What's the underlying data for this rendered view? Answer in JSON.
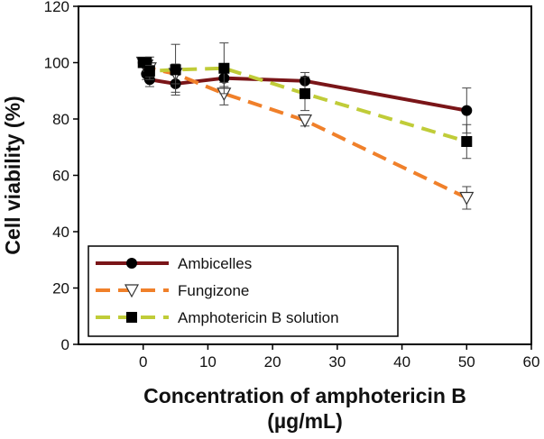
{
  "chart_data": {
    "type": "line",
    "title": "",
    "xlabel_lines": [
      "Concentration of amphotericin B",
      "(µg/mL)"
    ],
    "ylabel": "Cell viability (%)",
    "xlim": [
      -10,
      60
    ],
    "ylim": [
      0,
      120
    ],
    "xticks": [
      0,
      10,
      20,
      30,
      40,
      50,
      60
    ],
    "yticks": [
      0,
      20,
      40,
      60,
      80,
      100,
      120
    ],
    "grid": false,
    "legend_position": "bottom-left",
    "series": [
      {
        "name": "Ambicelles",
        "color": "#7a1518",
        "line_style": "solid",
        "marker": "filled-circle",
        "x": [
          0,
          0.5,
          1,
          5,
          12.5,
          25,
          50
        ],
        "y": [
          100,
          96,
          94,
          92.5,
          94.5,
          93.5,
          83
        ],
        "err": [
          1.5,
          2,
          2.5,
          3,
          3,
          3,
          8
        ]
      },
      {
        "name": "Fungizone",
        "color": "#f0802a",
        "line_style": "dashed",
        "marker": "open-triangle-down",
        "x": [
          0,
          0.5,
          1,
          5,
          12.5,
          25,
          50
        ],
        "y": [
          100,
          99,
          98,
          96,
          89,
          79.5,
          52
        ],
        "err": [
          1.5,
          2,
          4,
          3.5,
          4,
          2,
          4
        ]
      },
      {
        "name": "Amphotericin B solution",
        "color": "#c0cc38",
        "line_style": "dashed",
        "marker": "filled-square",
        "x": [
          0,
          0.5,
          1,
          5,
          12.5,
          25,
          50
        ],
        "y": [
          100,
          100,
          97,
          97.5,
          98,
          89,
          72
        ],
        "err": [
          1.5,
          1.5,
          2,
          9,
          9,
          6,
          6
        ]
      }
    ]
  }
}
